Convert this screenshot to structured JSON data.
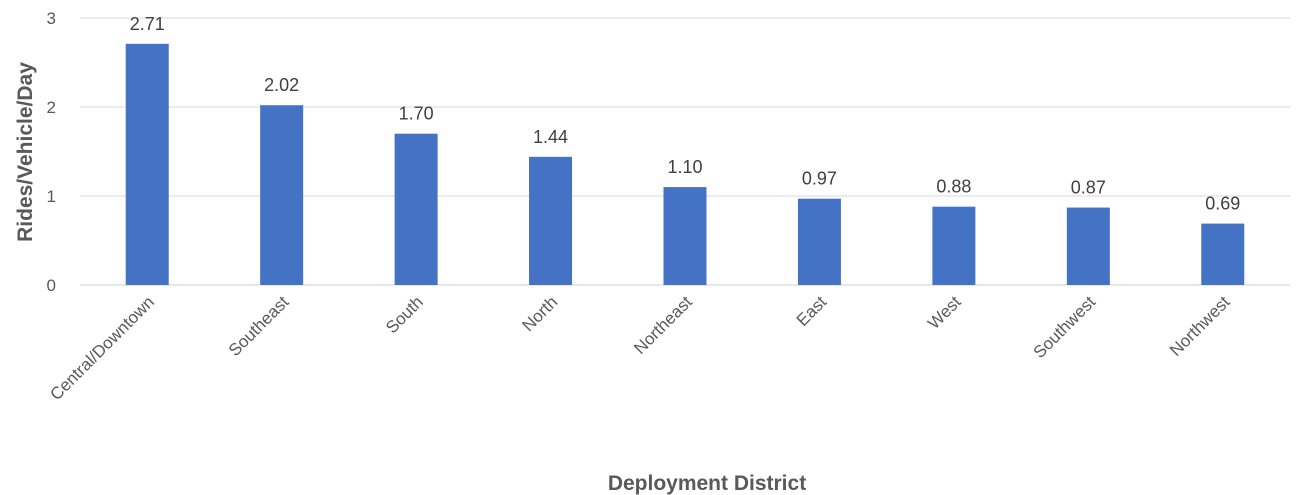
{
  "chart_data": {
    "type": "bar",
    "title": "",
    "xlabel": "Deployment District",
    "ylabel": "Rides/Vehicle/Day",
    "categories": [
      "Central/Downtown",
      "Southeast",
      "South",
      "North",
      "Northeast",
      "East",
      "West",
      "Southwest",
      "Northwest"
    ],
    "values": [
      2.71,
      2.02,
      1.7,
      1.44,
      1.1,
      0.97,
      0.88,
      0.87,
      0.69
    ],
    "value_labels": [
      "2.71",
      "2.02",
      "1.70",
      "1.44",
      "1.10",
      "0.97",
      "0.88",
      "0.87",
      "0.69"
    ],
    "ylim": [
      0,
      3
    ],
    "yticks": [
      "0",
      "1",
      "2",
      "3"
    ],
    "grid": true,
    "legend": "none",
    "bar_color": "#4472c4"
  }
}
